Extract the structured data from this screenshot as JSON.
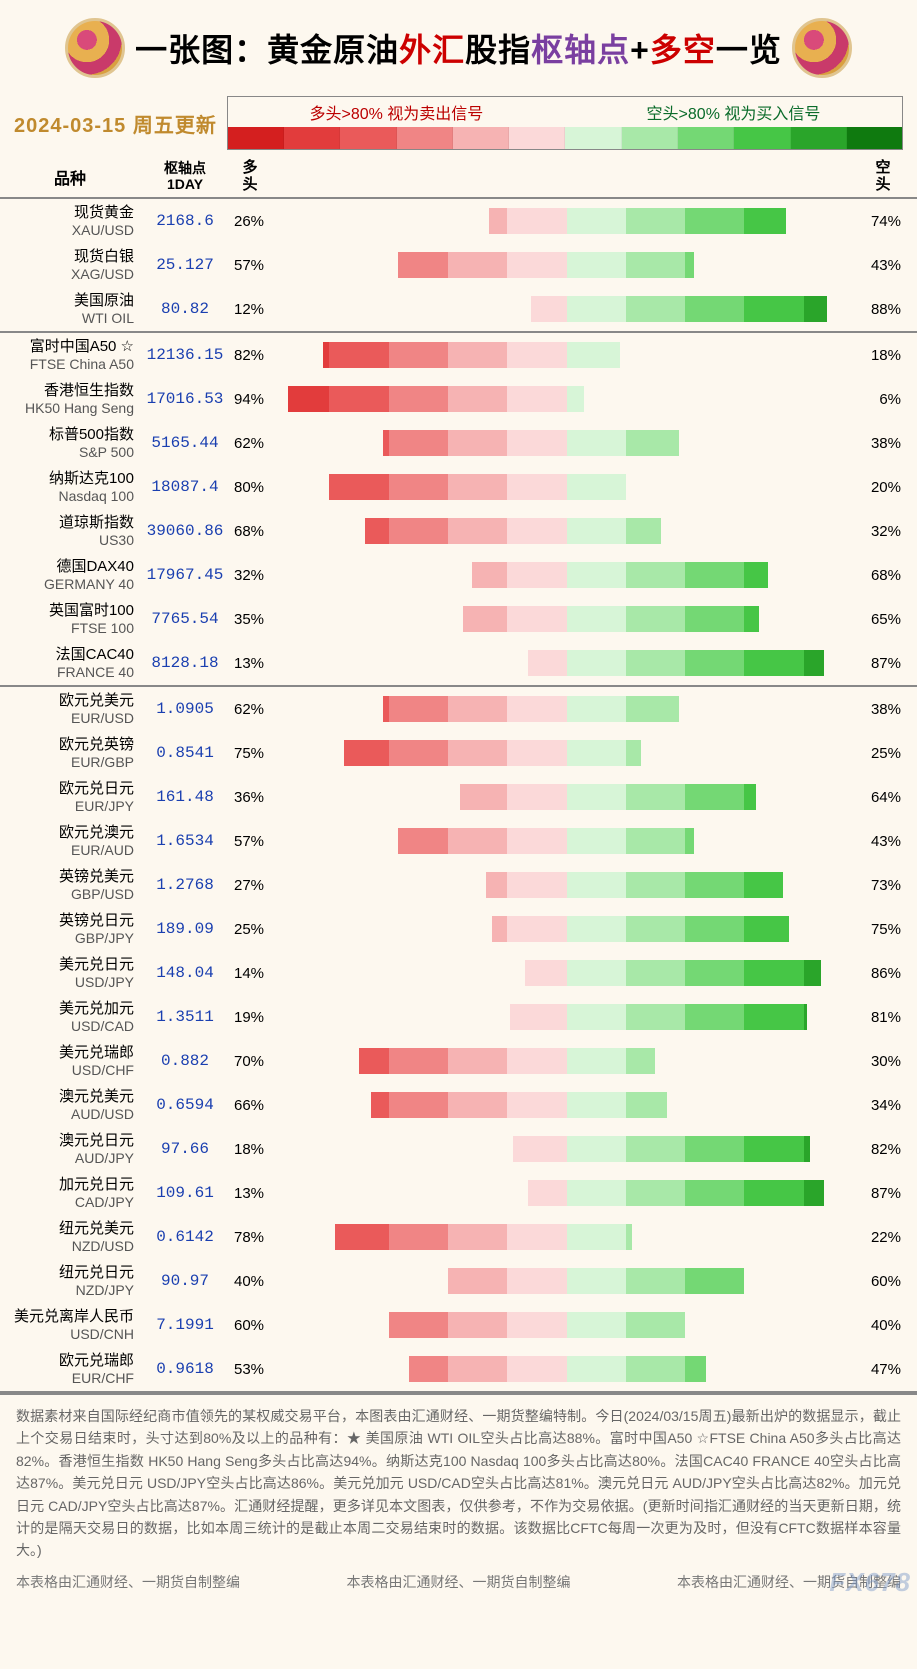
{
  "title": {
    "t1": "一张图：黄金原油",
    "t2": "外汇",
    "t3": "股指",
    "t4": "枢轴点",
    "t5": "+",
    "t6": "多空",
    "t7": "一览"
  },
  "date": "2024-03-15  周五更新",
  "legend": {
    "sell_text": "多头>80% 视为卖出信号",
    "buy_text": "空头>80% 视为买入信号",
    "red_scale": [
      "#d41f1f",
      "#e23c3c",
      "#ea5a5a",
      "#f08585",
      "#f6b3b3",
      "#fbd9d9"
    ],
    "green_scale": [
      "#d7f5d7",
      "#a8e8a8",
      "#74d874",
      "#46c646",
      "#2aa52a",
      "#0f7a0f"
    ]
  },
  "columns": {
    "name": "品种",
    "pivot": "枢轴点\n1DAY",
    "bull": "多头",
    "bear": "空头"
  },
  "bar": {
    "half_width_pct": 50,
    "band_width": 20
  },
  "groups": [
    {
      "rows": [
        {
          "cn": "现货黄金",
          "en": "XAU/USD",
          "pivot": "2168.6",
          "bull": 26,
          "bear": 74
        },
        {
          "cn": "现货白银",
          "en": "XAG/USD",
          "pivot": "25.127",
          "bull": 57,
          "bear": 43
        },
        {
          "cn": "美国原油",
          "en": "WTI OIL",
          "pivot": "80.82",
          "bull": 12,
          "bear": 88
        }
      ]
    },
    {
      "rows": [
        {
          "cn": "富时中国A50 ☆",
          "en": "FTSE China A50",
          "pivot": "12136.15",
          "bull": 82,
          "bear": 18
        },
        {
          "cn": "香港恒生指数",
          "en": "HK50 Hang Seng",
          "pivot": "17016.53",
          "bull": 94,
          "bear": 6
        },
        {
          "cn": "标普500指数",
          "en": "S&P 500",
          "pivot": "5165.44",
          "bull": 62,
          "bear": 38
        },
        {
          "cn": "纳斯达克100",
          "en": "Nasdaq 100",
          "pivot": "18087.4",
          "bull": 80,
          "bear": 20
        },
        {
          "cn": "道琼斯指数",
          "en": "US30",
          "pivot": "39060.86",
          "bull": 68,
          "bear": 32
        },
        {
          "cn": "德国DAX40",
          "en": "GERMANY 40",
          "pivot": "17967.45",
          "bull": 32,
          "bear": 68
        },
        {
          "cn": "英国富时100",
          "en": "FTSE 100",
          "pivot": "7765.54",
          "bull": 35,
          "bear": 65
        },
        {
          "cn": "法国CAC40",
          "en": "FRANCE 40",
          "pivot": "8128.18",
          "bull": 13,
          "bear": 87
        }
      ]
    },
    {
      "rows": [
        {
          "cn": "欧元兑美元",
          "en": "EUR/USD",
          "pivot": "1.0905",
          "bull": 62,
          "bear": 38
        },
        {
          "cn": "欧元兑英镑",
          "en": "EUR/GBP",
          "pivot": "0.8541",
          "bull": 75,
          "bear": 25
        },
        {
          "cn": "欧元兑日元",
          "en": "EUR/JPY",
          "pivot": "161.48",
          "bull": 36,
          "bear": 64
        },
        {
          "cn": "欧元兑澳元",
          "en": "EUR/AUD",
          "pivot": "1.6534",
          "bull": 57,
          "bear": 43
        },
        {
          "cn": "英镑兑美元",
          "en": "GBP/USD",
          "pivot": "1.2768",
          "bull": 27,
          "bear": 73
        },
        {
          "cn": "英镑兑日元",
          "en": "GBP/JPY",
          "pivot": "189.09",
          "bull": 25,
          "bear": 75
        },
        {
          "cn": "美元兑日元",
          "en": "USD/JPY",
          "pivot": "148.04",
          "bull": 14,
          "bear": 86
        },
        {
          "cn": "美元兑加元",
          "en": "USD/CAD",
          "pivot": "1.3511",
          "bull": 19,
          "bear": 81
        },
        {
          "cn": "美元兑瑞郎",
          "en": "USD/CHF",
          "pivot": "0.882",
          "bull": 70,
          "bear": 30
        },
        {
          "cn": "澳元兑美元",
          "en": "AUD/USD",
          "pivot": "0.6594",
          "bull": 66,
          "bear": 34
        },
        {
          "cn": "澳元兑日元",
          "en": "AUD/JPY",
          "pivot": "97.66",
          "bull": 18,
          "bear": 82
        },
        {
          "cn": "加元兑日元",
          "en": "CAD/JPY",
          "pivot": "109.61",
          "bull": 13,
          "bear": 87
        },
        {
          "cn": "纽元兑美元",
          "en": "NZD/USD",
          "pivot": "0.6142",
          "bull": 78,
          "bear": 22
        },
        {
          "cn": "纽元兑日元",
          "en": "NZD/JPY",
          "pivot": "90.97",
          "bull": 40,
          "bear": 60
        },
        {
          "cn": "美元兑离岸人民币",
          "en": "USD/CNH",
          "pivot": "7.1991",
          "bull": 60,
          "bear": 40
        },
        {
          "cn": "欧元兑瑞郎",
          "en": "EUR/CHF",
          "pivot": "0.9618",
          "bull": 53,
          "bear": 47
        }
      ]
    }
  ],
  "footer": "数据素材来自国际经纪商市值领先的某权威交易平台，本图表由汇通财经、一期货整编特制。今日(2024/03/15周五)最新出炉的数据显示，截止上个交易日结束时，头寸达到80%及以上的品种有：★ 美国原油 WTI OIL空头占比高达88%。富时中国A50 ☆FTSE China A50多头占比高达82%。香港恒生指数 HK50 Hang Seng多头占比高达94%。纳斯达克100 Nasdaq 100多头占比高达80%。法国CAC40 FRANCE 40空头占比高达87%。美元兑日元 USD/JPY空头占比高达86%。美元兑加元 USD/CAD空头占比高达81%。澳元兑日元 AUD/JPY空头占比高达82%。加元兑日元 CAD/JPY空头占比高达87%。汇通财经提醒，更多详见本文图表，仅供参考，不作为交易依据。(更新时间指汇通财经的当天更新日期，统计的是隔天交易日的数据，比如本周三统计的是截止本周二交易结束时的数据。该数据比CFTC每周一次更为及时，但没有CFTC数据样本容量大。)",
  "credit": "本表格由汇通财经、一期货自制整编",
  "watermark": "FX678"
}
